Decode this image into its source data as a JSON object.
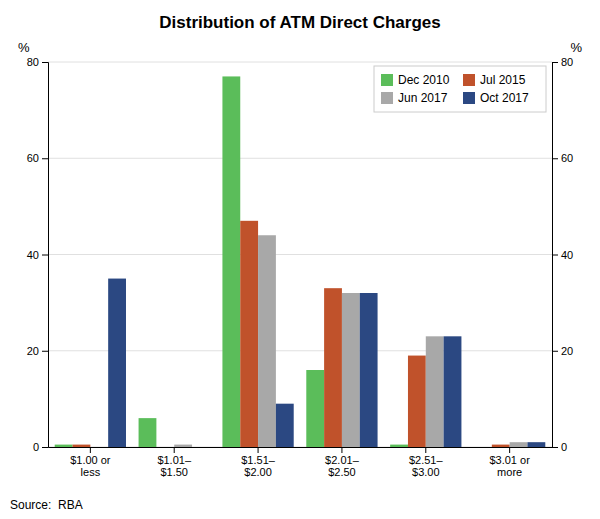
{
  "chart_data": {
    "type": "bar",
    "title": "Distribution of ATM Direct Charges",
    "categories": [
      "$1.00 or\nless",
      "$1.01–\n$1.50",
      "$1.51–\n$2.00",
      "$2.01–\n$2.50",
      "$2.51–\n$3.00",
      "$3.01 or\nmore"
    ],
    "series": [
      {
        "name": "Dec 2010",
        "color": "#5BBD5A",
        "values": [
          0.5,
          6.0,
          77.0,
          16.0,
          0.5,
          0.0
        ]
      },
      {
        "name": "Jul 2015",
        "color": "#C0522B",
        "values": [
          0.5,
          0.0,
          47.0,
          33.0,
          19.0,
          0.5
        ]
      },
      {
        "name": "Jun 2017",
        "color": "#A8A8A8",
        "values": [
          0.0,
          0.5,
          44.0,
          32.0,
          23.0,
          1.0
        ]
      },
      {
        "name": "Oct 2017",
        "color": "#2B4882",
        "values": [
          35.0,
          0.0,
          9.0,
          32.0,
          23.0,
          1.0
        ]
      }
    ],
    "ylim": [
      0,
      80
    ],
    "yticks": [
      0,
      20,
      40,
      60,
      80
    ],
    "y_label": "%",
    "y2lim": [
      0,
      80
    ],
    "y2ticks": [
      0,
      20,
      40,
      60,
      80
    ],
    "y2_label": "%",
    "source": "Source:  RBA",
    "grid": true,
    "legend": "upper right"
  }
}
